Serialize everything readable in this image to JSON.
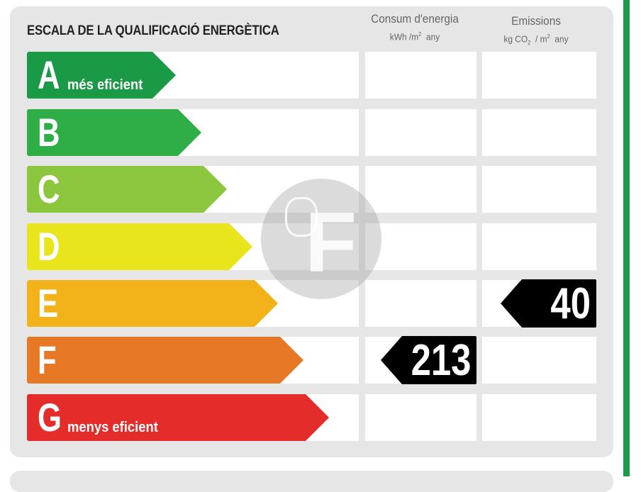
{
  "title": "ESCALA DE LA QUALIFICACIÓ ENERGÈTICA",
  "columns": {
    "consumption": {
      "label": "Consum d'energia",
      "unit_prefix": "kWh /m",
      "unit_sup": "2",
      "unit_suffix": "any"
    },
    "emissions": {
      "label": "Emissions",
      "unit_prefix": "kg CO",
      "unit_sub": "2",
      "unit_mid": "/ m",
      "unit_sup": "2",
      "unit_suffix": "any"
    }
  },
  "ratings": [
    {
      "letter": "A",
      "caption": "més eficient",
      "color": "#1a9a47"
    },
    {
      "letter": "B",
      "caption": "",
      "color": "#2fae48"
    },
    {
      "letter": "C",
      "caption": "",
      "color": "#8cc63f"
    },
    {
      "letter": "D",
      "caption": "",
      "color": "#e8e51c"
    },
    {
      "letter": "E",
      "caption": "",
      "color": "#f1b21a"
    },
    {
      "letter": "F",
      "caption": "",
      "color": "#e67826"
    },
    {
      "letter": "G",
      "caption": "menys eficient",
      "color": "#e42d2a"
    }
  ],
  "consumption_rating": {
    "letter": "F",
    "value": "213"
  },
  "emissions_rating": {
    "letter": "E",
    "value": "40"
  },
  "marker_color": "#000000",
  "accent_green": "#1f9a48"
}
